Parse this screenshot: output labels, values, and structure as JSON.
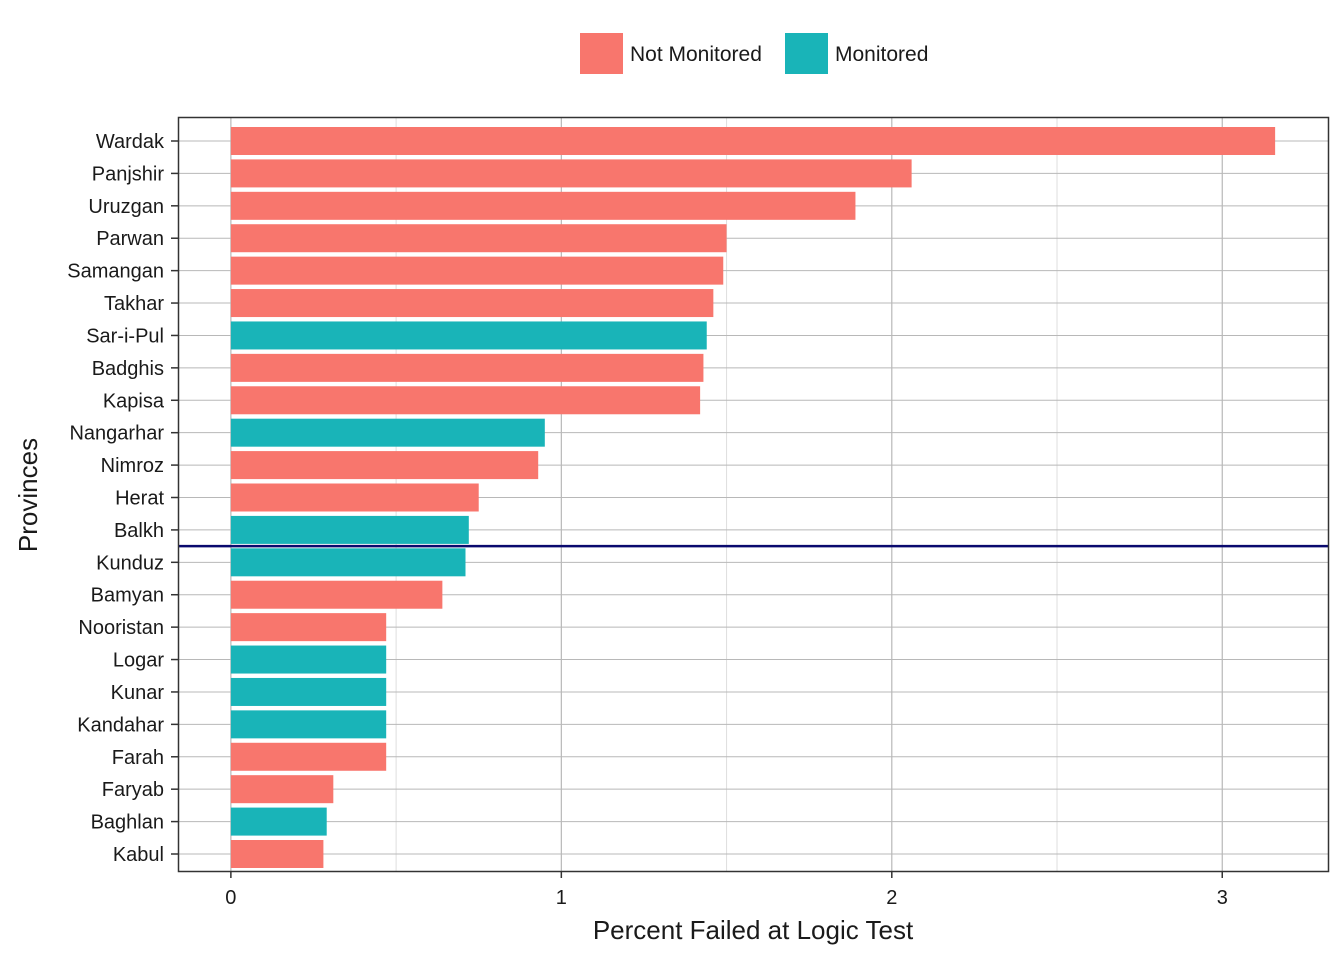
{
  "chart_data": {
    "type": "bar",
    "orientation": "horizontal",
    "xlabel": "Percent Failed at Logic Test",
    "ylabel": "Provinces",
    "xlim": [
      -0.16,
      3.32
    ],
    "xticks": [
      0,
      1,
      2,
      3
    ],
    "grid": true,
    "legend_position": "top",
    "legend": [
      {
        "name": "Not Monitored",
        "color": "#F8766D"
      },
      {
        "name": "Monitored",
        "color": "#19B4B8"
      }
    ],
    "reference_line": {
      "color": "#0a0a6e",
      "between": [
        "Balkh",
        "Kunduz"
      ]
    },
    "categories": [
      "Wardak",
      "Panjshir",
      "Uruzgan",
      "Parwan",
      "Samangan",
      "Takhar",
      "Sar-i-Pul",
      "Badghis",
      "Kapisa",
      "Nangarhar",
      "Nimroz",
      "Herat",
      "Balkh",
      "Kunduz",
      "Bamyan",
      "Nooristan",
      "Logar",
      "Kunar",
      "Kandahar",
      "Farah",
      "Faryab",
      "Baghlan",
      "Kabul"
    ],
    "values": [
      3.16,
      2.06,
      1.89,
      1.5,
      1.49,
      1.46,
      1.44,
      1.43,
      1.42,
      0.95,
      0.93,
      0.75,
      0.72,
      0.71,
      0.64,
      0.47,
      0.47,
      0.47,
      0.47,
      0.47,
      0.31,
      0.29,
      0.28
    ],
    "groups": [
      "Not Monitored",
      "Not Monitored",
      "Not Monitored",
      "Not Monitored",
      "Not Monitored",
      "Not Monitored",
      "Monitored",
      "Not Monitored",
      "Not Monitored",
      "Monitored",
      "Not Monitored",
      "Not Monitored",
      "Monitored",
      "Monitored",
      "Not Monitored",
      "Not Monitored",
      "Monitored",
      "Monitored",
      "Monitored",
      "Not Monitored",
      "Not Monitored",
      "Monitored",
      "Not Monitored"
    ]
  }
}
